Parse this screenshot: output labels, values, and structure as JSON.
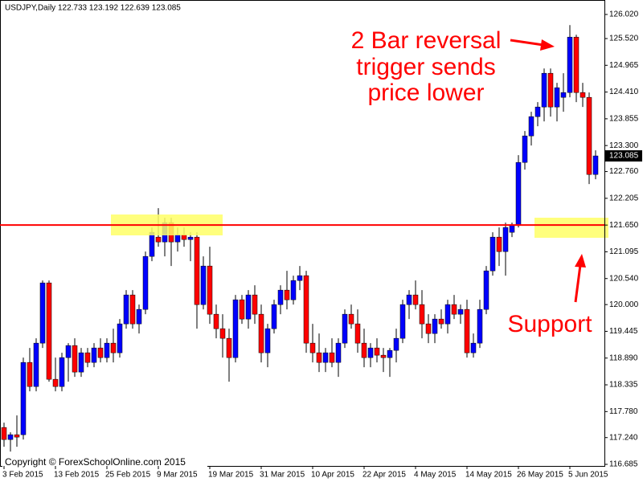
{
  "chart_data": {
    "type": "candlestick",
    "subtitle": "USDJPY,Daily  122.733 123.192 122.639 123.085",
    "copyright": "Copyright © ForexSchoolOnline.com 2015",
    "annotation_top": [
      "2 Bar reversal",
      "trigger sends",
      "price lower"
    ],
    "annotation_bottom": "Support",
    "up_color": "#0000ff",
    "down_color": "#ff0000",
    "hline": {
      "value": 121.65,
      "color": "#ff0000"
    },
    "last_price": 123.085,
    "ylim": [
      116.652,
      126.32
    ],
    "yticks": [
      {
        "value": 126.02,
        "label": "126.020"
      },
      {
        "value": 125.52,
        "label": "125.520"
      },
      124.965,
      {
        "value": 124.41,
        "label": "124.410"
      },
      123.855,
      {
        "value": 123.3,
        "label": "123.300"
      },
      {
        "value": 122.76,
        "label": "122.760"
      },
      122.205,
      {
        "value": 121.65,
        "label": "121.650"
      },
      121.095,
      {
        "value": 120.54,
        "label": "120.540"
      },
      {
        "value": 120,
        "label": "120.000"
      },
      119.445,
      {
        "value": 118.89,
        "label": "118.890"
      },
      118.335,
      {
        "value": 117.78,
        "label": "117.780"
      },
      {
        "value": 117.24,
        "label": "117.240"
      },
      116.685
    ],
    "categories": [
      "3 Feb 2015",
      null,
      null,
      null,
      null,
      null,
      null,
      null,
      "13 Feb 2015",
      null,
      null,
      null,
      null,
      null,
      null,
      null,
      "25 Feb 2015",
      null,
      null,
      null,
      null,
      null,
      null,
      null,
      "9 Mar 2015",
      null,
      null,
      null,
      null,
      null,
      null,
      null,
      "19 Mar 2015",
      null,
      null,
      null,
      null,
      null,
      null,
      null,
      "31 Mar 2015",
      null,
      null,
      null,
      null,
      null,
      null,
      null,
      "10 Apr 2015",
      null,
      null,
      null,
      null,
      null,
      null,
      null,
      "22 Apr 2015",
      null,
      null,
      null,
      null,
      null,
      null,
      null,
      "4 May 2015",
      null,
      null,
      null,
      null,
      null,
      null,
      null,
      "14 May 2015",
      null,
      null,
      null,
      null,
      null,
      null,
      null,
      "26 May 2015",
      null,
      null,
      null,
      null,
      null,
      null,
      null,
      "5 Jun 2015",
      null,
      null,
      null,
      null
    ],
    "ohlc": [
      [
        117.45,
        117.55,
        117.05,
        117.2
      ],
      [
        117.2,
        117.35,
        116.95,
        117.3
      ],
      [
        117.3,
        117.7,
        117.05,
        117.25
      ],
      [
        117.3,
        118.9,
        117.2,
        118.8
      ],
      [
        118.8,
        119.1,
        118.2,
        118.3
      ],
      [
        118.3,
        119.3,
        118.2,
        119.2
      ],
      [
        119.2,
        120.5,
        119.1,
        120.45
      ],
      [
        120.45,
        120.5,
        118.4,
        118.45
      ],
      [
        118.45,
        118.9,
        118.2,
        118.3
      ],
      [
        118.3,
        119.0,
        118.2,
        118.9
      ],
      [
        118.9,
        119.2,
        118.4,
        119.15
      ],
      [
        119.15,
        119.3,
        118.5,
        118.6
      ],
      [
        118.6,
        119.1,
        118.5,
        119.0
      ],
      [
        119.0,
        119.1,
        118.7,
        118.8
      ],
      [
        118.8,
        119.2,
        118.7,
        119.1
      ],
      [
        119.1,
        119.3,
        118.8,
        118.9
      ],
      [
        118.9,
        119.3,
        118.8,
        119.2
      ],
      [
        119.2,
        119.5,
        118.8,
        119.0
      ],
      [
        119.0,
        119.7,
        118.9,
        119.6
      ],
      [
        119.6,
        120.3,
        119.5,
        120.2
      ],
      [
        120.2,
        120.3,
        119.5,
        119.6
      ],
      [
        119.6,
        120.0,
        119.4,
        119.9
      ],
      [
        119.9,
        121.1,
        119.8,
        121.0
      ],
      [
        121.0,
        121.6,
        120.9,
        121.5
      ],
      [
        121.4,
        122.0,
        121.2,
        121.3
      ],
      [
        121.3,
        121.8,
        121.0,
        121.7
      ],
      [
        121.7,
        121.8,
        120.8,
        121.3
      ],
      [
        121.3,
        121.6,
        121.1,
        121.45
      ],
      [
        121.45,
        121.6,
        121.2,
        121.35
      ],
      [
        121.35,
        121.5,
        120.9,
        121.4
      ],
      [
        121.4,
        121.5,
        119.5,
        120.0
      ],
      [
        120.0,
        121.0,
        119.9,
        120.8
      ],
      [
        120.8,
        121.2,
        119.6,
        119.8
      ],
      [
        119.8,
        120.0,
        119.3,
        119.5
      ],
      [
        119.5,
        119.8,
        118.9,
        119.3
      ],
      [
        119.3,
        119.5,
        118.4,
        118.9
      ],
      [
        118.9,
        120.2,
        118.8,
        120.1
      ],
      [
        120.1,
        120.2,
        119.6,
        119.7
      ],
      [
        119.7,
        120.3,
        119.5,
        120.2
      ],
      [
        120.2,
        120.4,
        119.6,
        119.8
      ],
      [
        119.8,
        120.0,
        118.8,
        119.0
      ],
      [
        119.0,
        119.6,
        118.7,
        119.5
      ],
      [
        119.5,
        120.1,
        119.4,
        120.0
      ],
      [
        120.0,
        120.4,
        119.8,
        120.3
      ],
      [
        120.3,
        120.7,
        119.9,
        120.1
      ],
      [
        120.1,
        120.6,
        120.0,
        120.5
      ],
      [
        120.5,
        120.8,
        120.3,
        120.6
      ],
      [
        120.6,
        120.7,
        119.0,
        119.2
      ],
      [
        119.2,
        119.6,
        118.8,
        119.0
      ],
      [
        119.0,
        119.4,
        118.6,
        118.8
      ],
      [
        118.8,
        119.1,
        118.6,
        119.0
      ],
      [
        119.0,
        119.3,
        118.7,
        118.8
      ],
      [
        118.8,
        119.3,
        118.5,
        119.2
      ],
      [
        119.2,
        119.9,
        119.1,
        119.8
      ],
      [
        119.8,
        120.0,
        119.5,
        119.6
      ],
      [
        119.6,
        119.9,
        119.0,
        119.2
      ],
      [
        119.2,
        119.5,
        118.7,
        118.9
      ],
      [
        118.9,
        119.2,
        118.7,
        119.1
      ],
      [
        119.1,
        119.3,
        118.8,
        118.95
      ],
      [
        118.95,
        119.1,
        118.6,
        118.9
      ],
      [
        118.9,
        119.1,
        118.5,
        119.05
      ],
      [
        119.05,
        119.5,
        118.8,
        119.3
      ],
      [
        119.3,
        120.1,
        119.2,
        120.0
      ],
      [
        120.0,
        120.3,
        119.7,
        120.2
      ],
      [
        120.2,
        120.5,
        119.9,
        120.0
      ],
      [
        120.0,
        120.3,
        119.3,
        119.6
      ],
      [
        119.6,
        119.8,
        119.2,
        119.4
      ],
      [
        119.4,
        119.8,
        119.2,
        119.7
      ],
      [
        119.7,
        119.9,
        119.5,
        119.6
      ],
      [
        119.6,
        120.1,
        119.4,
        120.0
      ],
      [
        120.0,
        120.2,
        119.7,
        119.8
      ],
      [
        119.8,
        120.0,
        119.6,
        119.9
      ],
      [
        119.9,
        120.1,
        118.9,
        119.0
      ],
      [
        119.0,
        119.4,
        118.9,
        119.2
      ],
      [
        119.2,
        120.1,
        119.1,
        119.9
      ],
      [
        119.9,
        120.8,
        119.8,
        120.7
      ],
      [
        120.7,
        121.5,
        120.6,
        121.4
      ],
      [
        121.4,
        121.6,
        120.8,
        121.1
      ],
      [
        121.1,
        121.7,
        120.6,
        121.6
      ],
      [
        121.5,
        121.7,
        121.4,
        121.65
      ],
      [
        121.65,
        123.1,
        121.6,
        122.95
      ],
      [
        122.95,
        123.6,
        122.8,
        123.5
      ],
      [
        123.5,
        124.0,
        123.3,
        123.9
      ],
      [
        123.9,
        124.2,
        123.7,
        124.1
      ],
      [
        124.1,
        124.9,
        123.8,
        124.8
      ],
      [
        124.8,
        124.9,
        123.9,
        124.1
      ],
      [
        124.1,
        124.6,
        123.8,
        124.5
      ],
      [
        124.3,
        124.8,
        124.0,
        124.4
      ],
      [
        124.4,
        125.8,
        124.3,
        125.55
      ],
      [
        125.55,
        125.6,
        124.2,
        124.4
      ],
      [
        124.4,
        124.6,
        124.1,
        124.3
      ],
      [
        124.3,
        124.4,
        122.5,
        122.7
      ],
      [
        122.7,
        123.2,
        122.6,
        123.085
      ]
    ]
  }
}
